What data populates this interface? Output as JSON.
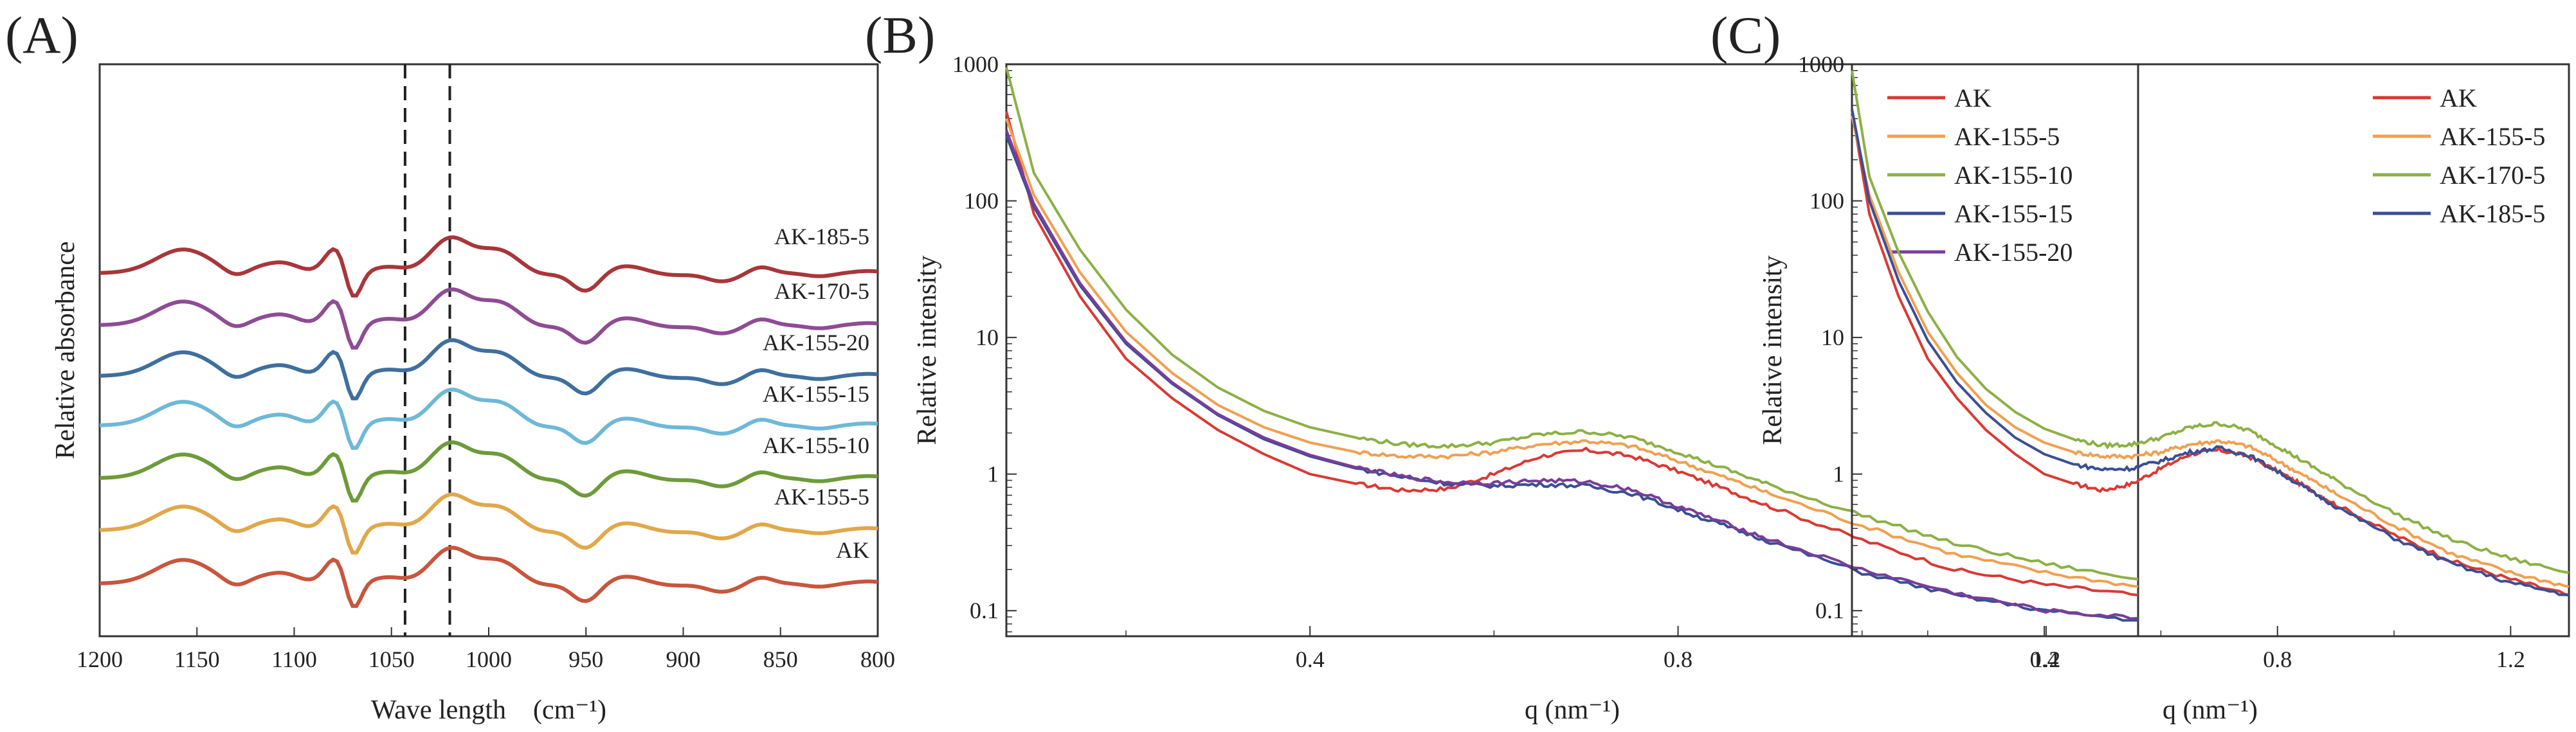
{
  "panels": [
    {
      "letter": "(A)",
      "xlabel": "Wave length (cm⁻¹)",
      "ylabel": "Relative absorbance",
      "xticks": [
        "1200",
        "1150",
        "1100",
        "1050",
        "1000",
        "950",
        "900",
        "850",
        "800"
      ]
    },
    {
      "letter": "(B)",
      "xlabel": "q (nm⁻¹)",
      "ylabel": "Relative intensity",
      "xticks": [
        "0.4",
        "0.8",
        "1.2"
      ],
      "yticks": [
        "0.1",
        "1",
        "10",
        "100",
        "1000"
      ],
      "legend": [
        "AK",
        "AK-155-5",
        "AK-155-10",
        "AK-155-15",
        "AK-155-20"
      ]
    },
    {
      "letter": "(C)",
      "xlabel": "q (nm⁻¹)",
      "ylabel": "Relative intensity",
      "xticks": [
        "0.4",
        "0.8",
        "1.2"
      ],
      "yticks": [
        "0.1",
        "1",
        "10",
        "100",
        "1000"
      ],
      "legend": [
        "AK",
        "AK-155-5",
        "AK-170-5",
        "AK-185-5"
      ]
    }
  ],
  "chart_data": [
    {
      "type": "line",
      "title": "",
      "xlabel": "Wave length (cm⁻¹)",
      "ylabel": "Relative absorbance",
      "xlim": [
        1200,
        800
      ],
      "x_reversed": true,
      "y_ticks_shown": false,
      "stacked_offset_traces": true,
      "vertical_dashed_lines_x": [
        1043,
        1020
      ],
      "peaks_cm": [
        1157,
        1130,
        1105,
        1078,
        1070,
        1020,
        995,
        950,
        930,
        860,
        830
      ],
      "series": [
        {
          "name": "AK",
          "color": "#c8553d"
        },
        {
          "name": "AK-155-5",
          "color": "#e0a84a"
        },
        {
          "name": "AK-155-10",
          "color": "#6e9b3a"
        },
        {
          "name": "AK-155-15",
          "color": "#6eb8d8"
        },
        {
          "name": "AK-155-20",
          "color": "#3f6f9e"
        },
        {
          "name": "AK-170-5",
          "color": "#8e4c94"
        },
        {
          "name": "AK-185-5",
          "color": "#a8363a"
        }
      ]
    },
    {
      "type": "line",
      "title": "",
      "xlabel": "q (nm⁻¹)",
      "ylabel": "Relative intensity",
      "xlim": [
        0.07,
        1.3
      ],
      "ylim": [
        0.065,
        1000
      ],
      "yscale": "log",
      "legend_position": "top-right",
      "series": [
        {
          "name": "AK",
          "color": "#d93a34",
          "x": [
            0.07,
            0.1,
            0.15,
            0.2,
            0.25,
            0.3,
            0.35,
            0.4,
            0.45,
            0.5,
            0.55,
            0.6,
            0.65,
            0.7,
            0.75,
            0.8,
            0.85,
            0.9,
            1.0,
            1.1,
            1.2,
            1.3
          ],
          "y": [
            450,
            80,
            20,
            7,
            3.6,
            2.1,
            1.4,
            1.0,
            0.85,
            0.76,
            0.78,
            1.0,
            1.35,
            1.5,
            1.35,
            1.05,
            0.78,
            0.58,
            0.33,
            0.2,
            0.155,
            0.13
          ]
        },
        {
          "name": "AK-155-5",
          "color": "#f0a050",
          "x": [
            0.07,
            0.1,
            0.15,
            0.2,
            0.25,
            0.3,
            0.35,
            0.4,
            0.45,
            0.5,
            0.55,
            0.6,
            0.65,
            0.7,
            0.75,
            0.8,
            0.85,
            0.9,
            1.0,
            1.1,
            1.2,
            1.3
          ],
          "y": [
            400,
            110,
            30,
            11,
            5.5,
            3.2,
            2.2,
            1.7,
            1.45,
            1.35,
            1.35,
            1.45,
            1.65,
            1.75,
            1.6,
            1.25,
            0.95,
            0.72,
            0.42,
            0.26,
            0.19,
            0.15
          ]
        },
        {
          "name": "AK-155-10",
          "color": "#8db045",
          "x": [
            0.07,
            0.1,
            0.15,
            0.2,
            0.25,
            0.3,
            0.35,
            0.4,
            0.45,
            0.5,
            0.55,
            0.6,
            0.65,
            0.7,
            0.75,
            0.8,
            0.85,
            0.9,
            1.0,
            1.1,
            1.2,
            1.3
          ],
          "y": [
            950,
            160,
            44,
            16,
            7.5,
            4.3,
            2.9,
            2.2,
            1.85,
            1.65,
            1.6,
            1.7,
            1.95,
            2.05,
            1.85,
            1.45,
            1.1,
            0.83,
            0.5,
            0.31,
            0.22,
            0.17
          ]
        },
        {
          "name": "AK-155-15",
          "color": "#3a4e96",
          "x": [
            0.07,
            0.1,
            0.15,
            0.2,
            0.25,
            0.3,
            0.35,
            0.4,
            0.45,
            0.5,
            0.55,
            0.6,
            0.65,
            0.7,
            0.75,
            0.8,
            0.85,
            0.9,
            1.0,
            1.1,
            1.2,
            1.3
          ],
          "y": [
            300,
            90,
            24,
            9,
            4.6,
            2.7,
            1.8,
            1.35,
            1.1,
            0.95,
            0.85,
            0.82,
            0.84,
            0.82,
            0.72,
            0.55,
            0.42,
            0.32,
            0.19,
            0.13,
            0.1,
            0.085
          ]
        },
        {
          "name": "AK-155-20",
          "color": "#7a3d99",
          "x": [
            0.07,
            0.1,
            0.15,
            0.2,
            0.25,
            0.3,
            0.35,
            0.4,
            0.45,
            0.5,
            0.55,
            0.6,
            0.65,
            0.7,
            0.75,
            0.8,
            0.85,
            0.9,
            1.0,
            1.1,
            1.2,
            1.3
          ],
          "y": [
            330,
            95,
            25,
            9.3,
            4.7,
            2.75,
            1.85,
            1.38,
            1.12,
            0.96,
            0.87,
            0.86,
            0.9,
            0.88,
            0.77,
            0.58,
            0.44,
            0.33,
            0.2,
            0.135,
            0.1,
            0.088
          ]
        }
      ]
    },
    {
      "type": "line",
      "title": "",
      "xlabel": "q (nm⁻¹)",
      "ylabel": "Relative intensity",
      "xlim": [
        0.07,
        1.3
      ],
      "ylim": [
        0.065,
        1000
      ],
      "yscale": "log",
      "legend_position": "top-right",
      "series": [
        {
          "name": "AK",
          "color": "#d93a34",
          "x": [
            0.07,
            0.1,
            0.15,
            0.2,
            0.25,
            0.3,
            0.35,
            0.4,
            0.45,
            0.5,
            0.55,
            0.6,
            0.65,
            0.7,
            0.75,
            0.8,
            0.85,
            0.9,
            1.0,
            1.1,
            1.2,
            1.3
          ],
          "y": [
            460,
            80,
            20,
            7,
            3.6,
            2.1,
            1.4,
            1.0,
            0.85,
            0.76,
            0.85,
            1.1,
            1.4,
            1.5,
            1.35,
            1.05,
            0.8,
            0.6,
            0.36,
            0.23,
            0.17,
            0.13
          ]
        },
        {
          "name": "AK-155-5",
          "color": "#f0a050",
          "x": [
            0.07,
            0.1,
            0.15,
            0.2,
            0.25,
            0.3,
            0.35,
            0.4,
            0.45,
            0.5,
            0.55,
            0.6,
            0.65,
            0.7,
            0.75,
            0.8,
            0.85,
            0.9,
            1.0,
            1.1,
            1.2,
            1.3
          ],
          "y": [
            420,
            110,
            30,
            11,
            5.5,
            3.2,
            2.2,
            1.7,
            1.45,
            1.35,
            1.35,
            1.45,
            1.65,
            1.75,
            1.6,
            1.25,
            0.95,
            0.72,
            0.42,
            0.26,
            0.19,
            0.15
          ]
        },
        {
          "name": "AK-170-5",
          "color": "#8db045",
          "x": [
            0.07,
            0.1,
            0.15,
            0.2,
            0.25,
            0.3,
            0.35,
            0.4,
            0.45,
            0.5,
            0.55,
            0.6,
            0.65,
            0.7,
            0.75,
            0.8,
            0.85,
            0.9,
            1.0,
            1.1,
            1.2,
            1.3
          ],
          "y": [
            900,
            150,
            42,
            15.5,
            7.2,
            4.2,
            2.85,
            2.15,
            1.8,
            1.62,
            1.65,
            1.85,
            2.2,
            2.35,
            2.1,
            1.6,
            1.2,
            0.9,
            0.52,
            0.33,
            0.24,
            0.19
          ]
        },
        {
          "name": "AK-185-5",
          "color": "#3a4e96",
          "x": [
            0.07,
            0.1,
            0.15,
            0.2,
            0.25,
            0.3,
            0.35,
            0.4,
            0.45,
            0.5,
            0.55,
            0.6,
            0.65,
            0.7,
            0.75,
            0.8,
            0.85,
            0.9,
            1.0,
            1.1,
            1.2,
            1.3
          ],
          "y": [
            470,
            100,
            26,
            9.5,
            4.7,
            2.8,
            1.85,
            1.4,
            1.18,
            1.08,
            1.1,
            1.25,
            1.45,
            1.55,
            1.38,
            1.05,
            0.78,
            0.58,
            0.34,
            0.22,
            0.16,
            0.13
          ]
        }
      ]
    }
  ]
}
